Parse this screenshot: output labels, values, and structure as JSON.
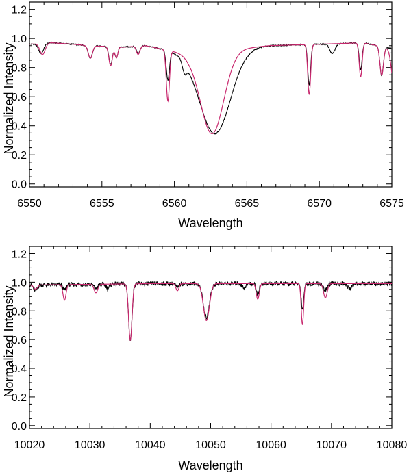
{
  "chart_data": [
    {
      "type": "line",
      "xlabel": "Wavelength",
      "ylabel": "Normalized Intensity",
      "xlim": [
        6550,
        6575
      ],
      "ylim": [
        -0.02,
        1.25
      ],
      "x_ticks": [
        "6550",
        "6555",
        "6560",
        "6565",
        "6570",
        "6575"
      ],
      "y_ticks": [
        "0.0",
        "0.2",
        "0.4",
        "0.6",
        "0.8",
        "1.0",
        "1.2"
      ],
      "grid": false,
      "continuum": [
        [
          6550.0,
          0.96
        ],
        [
          6551.5,
          0.97
        ],
        [
          6553.0,
          0.96
        ],
        [
          6554.0,
          0.95
        ],
        [
          6556.5,
          0.94
        ],
        [
          6558.0,
          0.95
        ],
        [
          6561.0,
          0.89
        ],
        [
          6566.5,
          0.95
        ],
        [
          6570.0,
          0.96
        ],
        [
          6573.0,
          0.97
        ],
        [
          6575.0,
          0.93
        ]
      ],
      "series": [
        {
          "color": "#000000",
          "continuum_scale": 1.0,
          "lines": [
            {
              "center": 6550.8,
              "depth": 0.07,
              "width": 0.18
            },
            {
              "center": 6554.2,
              "depth": 0.09,
              "width": 0.14
            },
            {
              "center": 6555.6,
              "depth": 0.13,
              "width": 0.12
            },
            {
              "center": 6556.0,
              "depth": 0.08,
              "width": 0.1
            },
            {
              "center": 6557.5,
              "depth": 0.05,
              "width": 0.12
            },
            {
              "center": 6559.55,
              "depth": 0.22,
              "width": 0.11
            },
            {
              "center": 6560.7,
              "depth": 0.08,
              "width": 0.14
            },
            {
              "center": 6562.8,
              "depth": 0.62,
              "width": 1.05
            },
            {
              "center": 6569.3,
              "depth": 0.29,
              "width": 0.1
            },
            {
              "center": 6570.9,
              "depth": 0.07,
              "width": 0.18
            },
            {
              "center": 6572.85,
              "depth": 0.19,
              "width": 0.1
            },
            {
              "center": 6574.3,
              "depth": 0.21,
              "width": 0.12
            }
          ]
        },
        {
          "color": "#c8286e",
          "continuum_scale": 1.0,
          "lines": [
            {
              "center": 6550.9,
              "depth": 0.08,
              "width": 0.18
            },
            {
              "center": 6554.2,
              "depth": 0.09,
              "width": 0.14
            },
            {
              "center": 6555.6,
              "depth": 0.14,
              "width": 0.12
            },
            {
              "center": 6556.0,
              "depth": 0.08,
              "width": 0.1
            },
            {
              "center": 6557.5,
              "depth": 0.06,
              "width": 0.12
            },
            {
              "center": 6559.55,
              "depth": 0.38,
              "width": 0.11
            },
            {
              "center": 6562.6,
              "depth": 0.62,
              "width": 0.8
            },
            {
              "center": 6569.3,
              "depth": 0.36,
              "width": 0.1
            },
            {
              "center": 6572.85,
              "depth": 0.24,
              "width": 0.1
            },
            {
              "center": 6574.3,
              "depth": 0.21,
              "width": 0.12
            },
            {
              "center": 6575.2,
              "depth": 0.3,
              "width": 0.2
            }
          ]
        }
      ]
    },
    {
      "type": "line",
      "xlabel": "Wavelength",
      "ylabel": "Normalized Intensity",
      "xlim": [
        10020,
        10080
      ],
      "ylim": [
        -0.02,
        1.25
      ],
      "x_ticks": [
        "10020",
        "10030",
        "10040",
        "10050",
        "10060",
        "10070",
        "10080"
      ],
      "y_ticks": [
        "0.0",
        "0.2",
        "0.4",
        "0.6",
        "0.8",
        "1.0",
        "1.2"
      ],
      "grid": false,
      "continuum": [
        [
          10020,
          0.98
        ],
        [
          10040,
          0.99
        ],
        [
          10060,
          0.99
        ],
        [
          10080,
          0.99
        ]
      ],
      "series": [
        {
          "color": "#000000",
          "continuum_scale": 1.0,
          "lines": [
            {
              "center": 10021.0,
              "depth": 0.04,
              "width": 0.3
            },
            {
              "center": 10025.8,
              "depth": 0.04,
              "width": 0.25
            },
            {
              "center": 10031.0,
              "depth": 0.03,
              "width": 0.3
            },
            {
              "center": 10033.0,
              "depth": 0.03,
              "width": 0.25
            },
            {
              "center": 10036.7,
              "depth": 0.4,
              "width": 0.28
            },
            {
              "center": 10044.5,
              "depth": 0.03,
              "width": 0.25
            },
            {
              "center": 10049.3,
              "depth": 0.24,
              "width": 0.5
            },
            {
              "center": 10055.5,
              "depth": 0.03,
              "width": 0.3
            },
            {
              "center": 10057.8,
              "depth": 0.07,
              "width": 0.25
            },
            {
              "center": 10065.2,
              "depth": 0.18,
              "width": 0.2
            },
            {
              "center": 10069.0,
              "depth": 0.05,
              "width": 0.3
            },
            {
              "center": 10073.0,
              "depth": 0.04,
              "width": 0.3
            }
          ]
        },
        {
          "color": "#c8286e",
          "continuum_scale": 1.0,
          "lines": [
            {
              "center": 10021.0,
              "depth": 0.03,
              "width": 0.3
            },
            {
              "center": 10025.8,
              "depth": 0.11,
              "width": 0.25
            },
            {
              "center": 10031.0,
              "depth": 0.06,
              "width": 0.3
            },
            {
              "center": 10036.7,
              "depth": 0.4,
              "width": 0.28
            },
            {
              "center": 10044.5,
              "depth": 0.05,
              "width": 0.25
            },
            {
              "center": 10049.3,
              "depth": 0.26,
              "width": 0.5
            },
            {
              "center": 10057.8,
              "depth": 0.11,
              "width": 0.25
            },
            {
              "center": 10065.2,
              "depth": 0.29,
              "width": 0.2
            },
            {
              "center": 10069.0,
              "depth": 0.1,
              "width": 0.3
            }
          ]
        }
      ]
    }
  ]
}
